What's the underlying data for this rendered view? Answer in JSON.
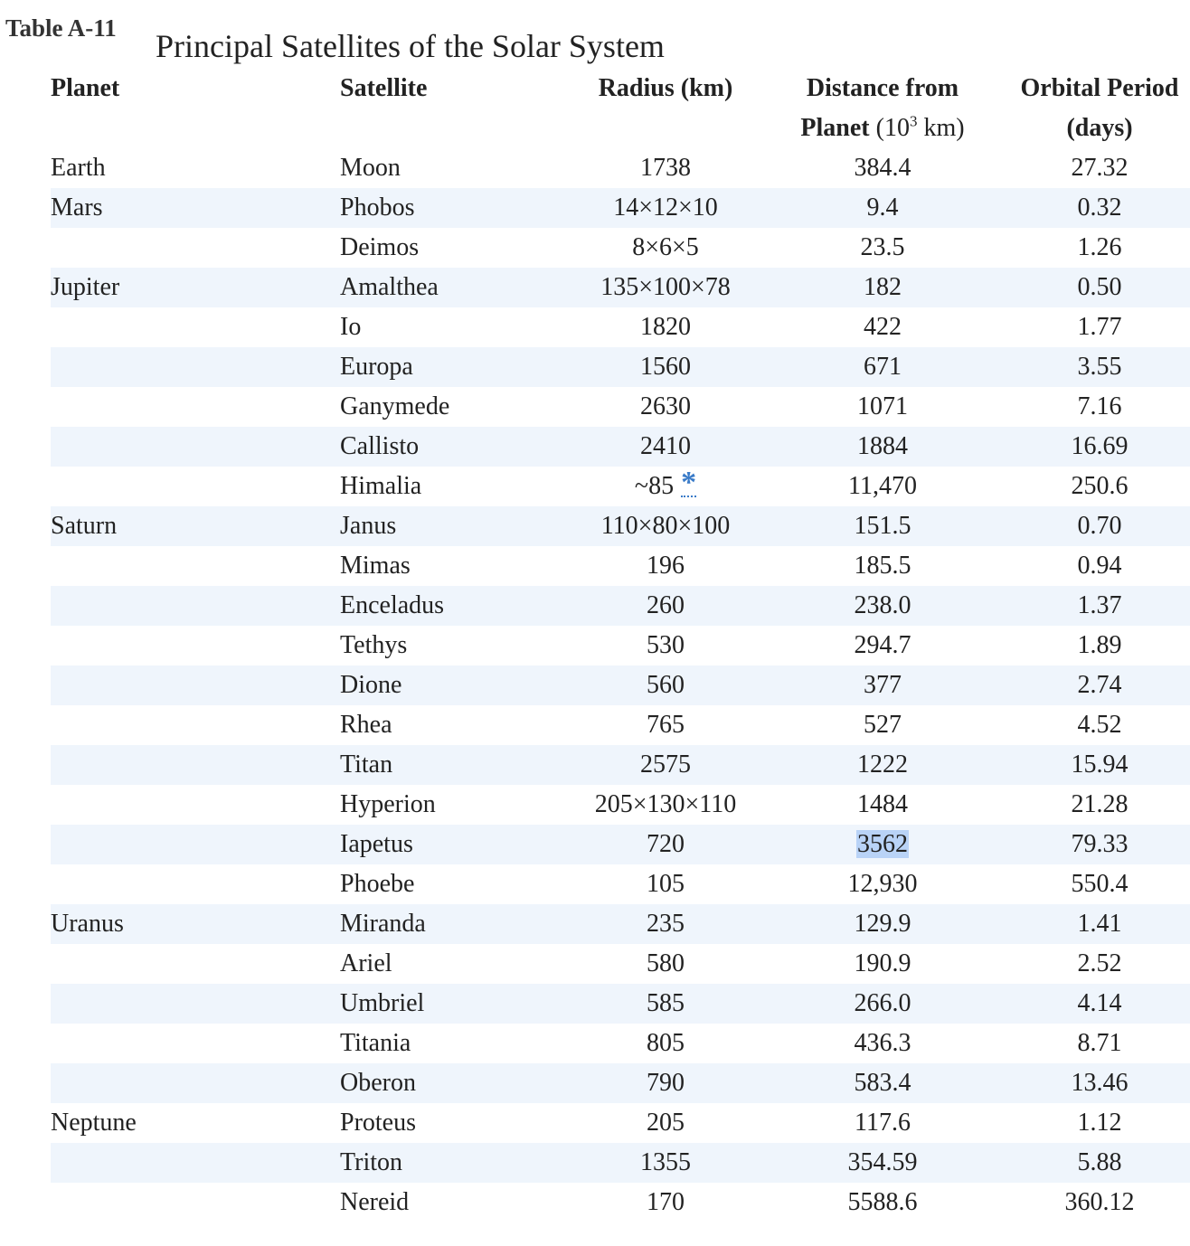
{
  "table_label": "Table A-11",
  "caption": "Principal Satellites of the Solar System",
  "headers": {
    "planet": "Planet",
    "satellite": "Satellite",
    "radius": "Radius (km)",
    "distance_line1": "Distance from",
    "distance_line2_bold": "Planet",
    "distance_unit_open": "(10",
    "distance_unit_exp": "3",
    "distance_unit_close": " km)",
    "period_line1": "Orbital Period",
    "period_line2": "(days)"
  },
  "footnote_marker": "*",
  "rows": [
    {
      "planet": "Earth",
      "satellite": "Moon",
      "radius": "1738",
      "distance": "384.4",
      "period": "27.32"
    },
    {
      "planet": "Mars",
      "satellite": "Phobos",
      "radius": "14×12×10",
      "distance": "9.4",
      "period": "0.32"
    },
    {
      "planet": "",
      "satellite": "Deimos",
      "radius": "8×6×5",
      "distance": "23.5",
      "period": "1.26"
    },
    {
      "planet": "Jupiter",
      "satellite": "Amalthea",
      "radius": "135×100×78",
      "distance": "182",
      "period": "0.50"
    },
    {
      "planet": "",
      "satellite": "Io",
      "radius": "1820",
      "distance": "422",
      "period": "1.77"
    },
    {
      "planet": "",
      "satellite": "Europa",
      "radius": "1560",
      "distance": "671",
      "period": "3.55"
    },
    {
      "planet": "",
      "satellite": "Ganymede",
      "radius": "2630",
      "distance": "1071",
      "period": "7.16"
    },
    {
      "planet": "",
      "satellite": "Callisto",
      "radius": "2410",
      "distance": "1884",
      "period": "16.69"
    },
    {
      "planet": "",
      "satellite": "Himalia",
      "radius": "~85",
      "distance": "11,470",
      "period": "250.6"
    },
    {
      "planet": "Saturn",
      "satellite": "Janus",
      "radius": "110×80×100",
      "distance": "151.5",
      "period": "0.70"
    },
    {
      "planet": "",
      "satellite": "Mimas",
      "radius": "196",
      "distance": "185.5",
      "period": "0.94"
    },
    {
      "planet": "",
      "satellite": "Enceladus",
      "radius": "260",
      "distance": "238.0",
      "period": "1.37"
    },
    {
      "planet": "",
      "satellite": "Tethys",
      "radius": "530",
      "distance": "294.7",
      "period": "1.89"
    },
    {
      "planet": "",
      "satellite": "Dione",
      "radius": "560",
      "distance": "377",
      "period": "2.74"
    },
    {
      "planet": "",
      "satellite": "Rhea",
      "radius": "765",
      "distance": "527",
      "period": "4.52"
    },
    {
      "planet": "",
      "satellite": "Titan",
      "radius": "2575",
      "distance": "1222",
      "period": "15.94"
    },
    {
      "planet": "",
      "satellite": "Hyperion",
      "radius": "205×130×110",
      "distance": "1484",
      "period": "21.28"
    },
    {
      "planet": "",
      "satellite": "Iapetus",
      "radius": "720",
      "distance": "3562",
      "period": "79.33"
    },
    {
      "planet": "",
      "satellite": "Phoebe",
      "radius": "105",
      "distance": "12,930",
      "period": "550.4"
    },
    {
      "planet": "Uranus",
      "satellite": "Miranda",
      "radius": "235",
      "distance": "129.9",
      "period": "1.41"
    },
    {
      "planet": "",
      "satellite": "Ariel",
      "radius": "580",
      "distance": "190.9",
      "period": "2.52"
    },
    {
      "planet": "",
      "satellite": "Umbriel",
      "radius": "585",
      "distance": "266.0",
      "period": "4.14"
    },
    {
      "planet": "",
      "satellite": "Titania",
      "radius": "805",
      "distance": "436.3",
      "period": "8.71"
    },
    {
      "planet": "",
      "satellite": "Oberon",
      "radius": "790",
      "distance": "583.4",
      "period": "13.46"
    },
    {
      "planet": "Neptune",
      "satellite": "Proteus",
      "radius": "205",
      "distance": "117.6",
      "period": "1.12"
    },
    {
      "planet": "",
      "satellite": "Triton",
      "radius": "1355",
      "distance": "354.59",
      "period": "5.88"
    },
    {
      "planet": "",
      "satellite": "Nereid",
      "radius": "170",
      "distance": "5588.6",
      "period": "360.12"
    }
  ]
}
